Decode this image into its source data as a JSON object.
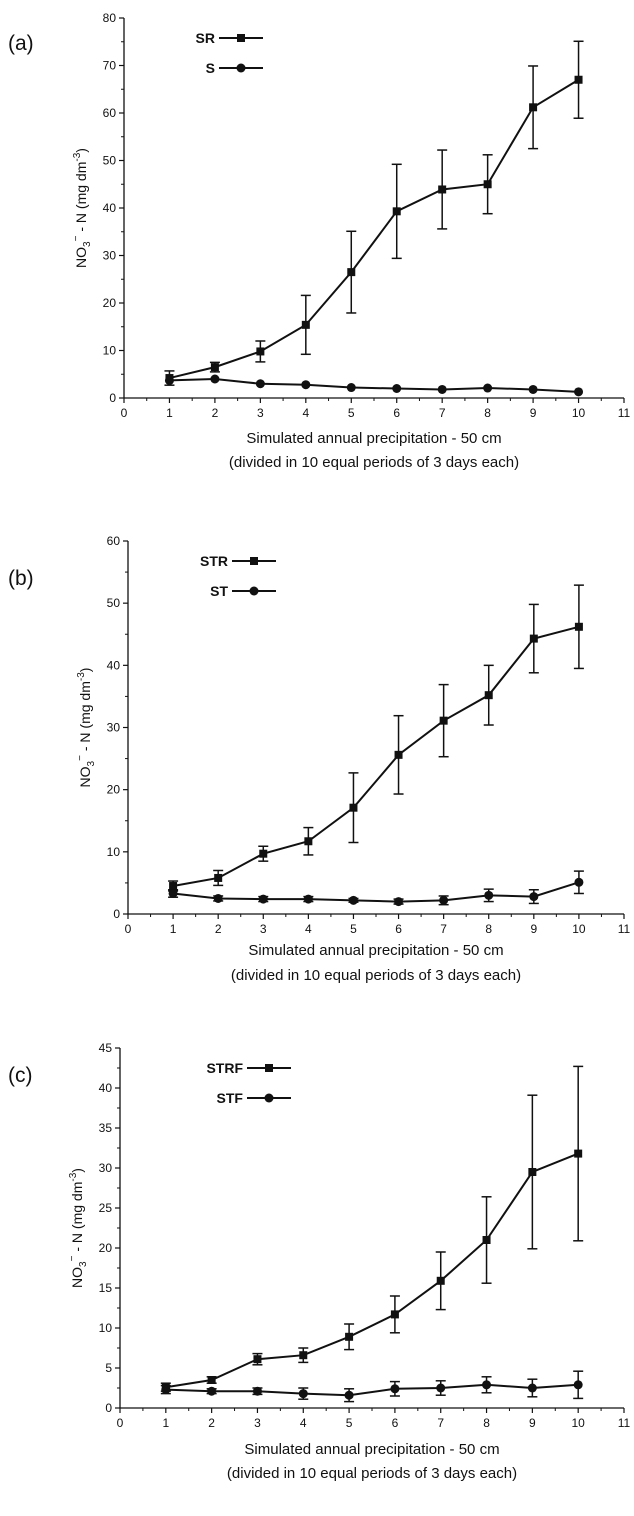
{
  "chart_data": [
    {
      "type": "line",
      "panel_label": "(a)",
      "xlabel": "Simulated annual precipitation - 50 cm",
      "xlabel_line2": "(divided in 10 equal periods of 3 days each)",
      "ylabel": {
        "base": "NO",
        "sub": "3",
        "sup": "−",
        "rest": " - N (mg dm",
        "rest_sup": "-3",
        "close": ")"
      },
      "xlim": [
        0,
        11
      ],
      "ylim": [
        0,
        80
      ],
      "xticks": [
        0,
        1,
        2,
        3,
        4,
        5,
        6,
        7,
        8,
        9,
        10,
        11
      ],
      "yticks": [
        0,
        10,
        20,
        30,
        40,
        50,
        60,
        70,
        80
      ],
      "grid": false,
      "legend_position": "top-left",
      "x": [
        1,
        2,
        3,
        4,
        5,
        6,
        7,
        8,
        9,
        10
      ],
      "series": [
        {
          "name": "SR",
          "marker": "square",
          "values": [
            4.2,
            6.5,
            9.8,
            15.4,
            26.5,
            39.3,
            43.9,
            45.0,
            61.2,
            67.0
          ],
          "errors": [
            1.5,
            1.0,
            2.2,
            6.2,
            8.6,
            9.9,
            8.3,
            6.2,
            8.7,
            8.1
          ]
        },
        {
          "name": "S",
          "marker": "circle",
          "values": [
            3.7,
            4.0,
            3.0,
            2.8,
            2.2,
            2.0,
            1.8,
            2.1,
            1.8,
            1.3
          ],
          "errors": [
            0,
            0,
            0,
            0,
            0,
            0,
            0,
            0,
            0,
            0
          ]
        }
      ]
    },
    {
      "type": "line",
      "panel_label": "(b)",
      "xlabel": "Simulated annual precipitation - 50 cm",
      "xlabel_line2": "(divided in 10 equal periods of 3 days each)",
      "ylabel": {
        "base": "NO",
        "sub": "3",
        "sup": "−",
        "rest": " - N (mg dm",
        "rest_sup": "-3",
        "close": ")"
      },
      "xlim": [
        0,
        11
      ],
      "ylim": [
        0,
        60
      ],
      "xticks": [
        0,
        1,
        2,
        3,
        4,
        5,
        6,
        7,
        8,
        9,
        10,
        11
      ],
      "yticks": [
        0,
        10,
        20,
        30,
        40,
        50,
        60
      ],
      "grid": false,
      "legend_position": "top-left",
      "x": [
        1,
        2,
        3,
        4,
        5,
        6,
        7,
        8,
        9,
        10
      ],
      "series": [
        {
          "name": "STR",
          "marker": "square",
          "values": [
            4.5,
            5.8,
            9.7,
            11.7,
            17.1,
            25.6,
            31.1,
            35.2,
            44.3,
            46.2
          ],
          "errors": [
            0.8,
            1.2,
            1.2,
            2.2,
            5.6,
            6.3,
            5.8,
            4.8,
            5.5,
            6.7
          ]
        },
        {
          "name": "ST",
          "marker": "circle",
          "values": [
            3.3,
            2.5,
            2.4,
            2.4,
            2.2,
            2.0,
            2.2,
            3.0,
            2.8,
            5.1
          ],
          "errors": [
            0.6,
            0.4,
            0.4,
            0.4,
            0.3,
            0.4,
            0.7,
            1.0,
            1.1,
            1.8
          ]
        }
      ]
    },
    {
      "type": "line",
      "panel_label": "(c)",
      "xlabel": "Simulated annual precipitation - 50 cm",
      "xlabel_line2": "(divided in 10 equal periods of 3 days each)",
      "ylabel": {
        "base": "NO",
        "sub": "3",
        "sup": "−",
        "rest": " - N (mg dm",
        "rest_sup": "-3",
        "close": ")"
      },
      "xlim": [
        0,
        11
      ],
      "ylim": [
        0,
        45
      ],
      "xticks": [
        0,
        1,
        2,
        3,
        4,
        5,
        6,
        7,
        8,
        9,
        10,
        11
      ],
      "yticks": [
        0,
        5,
        10,
        15,
        20,
        25,
        30,
        35,
        40,
        45
      ],
      "grid": false,
      "legend_position": "top-left",
      "x": [
        1,
        2,
        3,
        4,
        5,
        6,
        7,
        8,
        9,
        10
      ],
      "series": [
        {
          "name": "STRF",
          "marker": "square",
          "values": [
            2.6,
            3.5,
            6.1,
            6.6,
            8.9,
            11.7,
            15.9,
            21.0,
            29.5,
            31.8
          ],
          "errors": [
            0.5,
            0.4,
            0.7,
            0.9,
            1.6,
            2.3,
            3.6,
            5.4,
            9.6,
            10.9
          ]
        },
        {
          "name": "STF",
          "marker": "circle",
          "values": [
            2.3,
            2.1,
            2.1,
            1.8,
            1.6,
            2.4,
            2.5,
            2.9,
            2.5,
            2.9
          ],
          "errors": [
            0.5,
            0.3,
            0.4,
            0.7,
            0.8,
            0.9,
            0.9,
            1.0,
            1.1,
            1.7
          ]
        }
      ]
    }
  ]
}
